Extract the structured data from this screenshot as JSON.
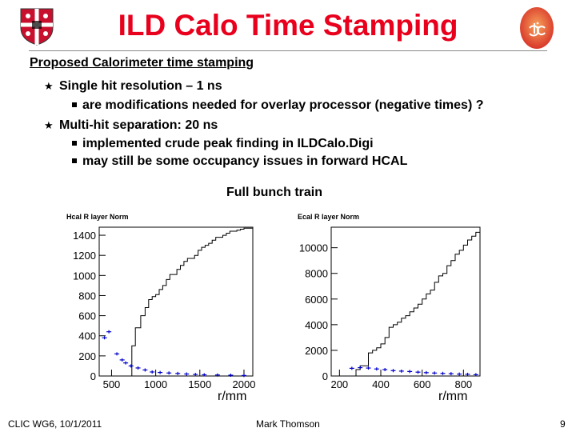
{
  "slide": {
    "title": "ILD Calo Time Stamping",
    "heading": "Proposed Calorimeter time stamping",
    "bullets": [
      {
        "text": "Single hit resolution – 1 ns",
        "sub": [
          "are modifications needed for overlay processor (negative times) ?"
        ]
      },
      {
        "text": "Multi-hit separation: 20 ns",
        "sub": [
          "implemented crude peak finding in ILDCalo.Digi",
          "may still be some occupancy issues in forward HCAL"
        ]
      }
    ],
    "figure_caption": "Full bunch train"
  },
  "icons": {
    "left_logo": "university-crest-icon",
    "right_logo": "clic-logo-icon"
  },
  "colors": {
    "title": "#e8001c",
    "markers": "#0000cc"
  },
  "chart_data": [
    {
      "type": "line",
      "title": "Hcal R layer Norm",
      "xlabel": "r/mm",
      "ylabel": "",
      "xlim": [
        360,
        2100
      ],
      "ylim": [
        0,
        1480
      ],
      "xticks": [
        500,
        1000,
        1500,
        2000
      ],
      "yticks": [
        0,
        200,
        400,
        600,
        800,
        1000,
        1200,
        1400
      ],
      "series": [
        {
          "style": "histogram",
          "x": [
            370,
            410,
            450,
            490,
            530,
            610,
            650,
            690,
            730,
            770,
            830,
            880,
            920,
            960,
            1000,
            1040,
            1080,
            1120,
            1160,
            1200,
            1240,
            1280,
            1320,
            1360,
            1400,
            1440,
            1480,
            1520,
            1560,
            1600,
            1640,
            1680,
            1720,
            1760,
            1800,
            1840,
            1880,
            1920,
            1960,
            2000
          ],
          "values": [
            0,
            0,
            0,
            0,
            0,
            0,
            0,
            0,
            300,
            480,
            600,
            680,
            760,
            790,
            810,
            860,
            900,
            960,
            1010,
            1010,
            1060,
            1100,
            1140,
            1170,
            1170,
            1200,
            1250,
            1280,
            1300,
            1320,
            1350,
            1380,
            1380,
            1400,
            1420,
            1440,
            1440,
            1450,
            1460,
            1470
          ]
        },
        {
          "style": "markers",
          "x": [
            420,
            470,
            560,
            620,
            660,
            720,
            800,
            880,
            960,
            1050,
            1150,
            1250,
            1350,
            1450,
            1550,
            1700,
            1850,
            2000
          ],
          "values": [
            380,
            440,
            220,
            160,
            130,
            100,
            80,
            60,
            40,
            35,
            30,
            25,
            20,
            15,
            12,
            10,
            8,
            5
          ]
        }
      ]
    },
    {
      "type": "line",
      "title": "Ecal R layer Norm",
      "xlabel": "r/mm",
      "ylabel": "",
      "xlim": [
        160,
        880
      ],
      "ylim": [
        0,
        11600
      ],
      "xticks": [
        200,
        400,
        600,
        800
      ],
      "yticks": [
        0,
        2000,
        4000,
        6000,
        8000,
        10000
      ],
      "series": [
        {
          "style": "histogram",
          "x": [
            170,
            200,
            220,
            240,
            260,
            280,
            300,
            320,
            340,
            360,
            380,
            400,
            420,
            440,
            460,
            480,
            500,
            520,
            540,
            560,
            580,
            600,
            620,
            640,
            660,
            680,
            700,
            720,
            740,
            760,
            780,
            800,
            820,
            840,
            860
          ],
          "values": [
            0,
            0,
            0,
            0,
            0,
            500,
            800,
            800,
            1800,
            2000,
            2200,
            2500,
            3000,
            3800,
            4000,
            4200,
            4500,
            4700,
            5000,
            5300,
            5600,
            6000,
            6400,
            6700,
            7300,
            7800,
            8000,
            8600,
            9000,
            9500,
            9800,
            10200,
            10600,
            10900,
            11200
          ]
        },
        {
          "style": "markers",
          "x": [
            260,
            300,
            340,
            380,
            420,
            460,
            500,
            540,
            580,
            620,
            660,
            700,
            740,
            780,
            820,
            860
          ],
          "values": [
            600,
            650,
            620,
            550,
            500,
            420,
            380,
            350,
            300,
            260,
            230,
            200,
            180,
            150,
            130,
            100
          ]
        }
      ]
    }
  ],
  "footer": {
    "left": "CLIC WG6, 10/1/2011",
    "center": "Mark Thomson",
    "page": "9"
  }
}
